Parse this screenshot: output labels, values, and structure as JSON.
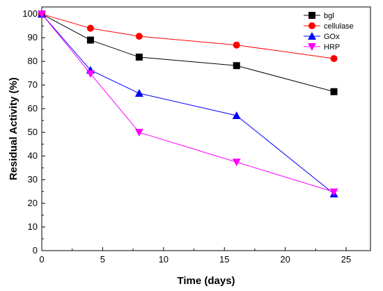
{
  "chart_data": {
    "type": "line",
    "xlabel": "Time (days)",
    "ylabel": "Residual Activity (%)",
    "xlim": [
      0,
      27
    ],
    "ylim": [
      0,
      103
    ],
    "xticks": [
      0,
      5,
      10,
      15,
      20,
      25
    ],
    "yticks": [
      0,
      10,
      20,
      30,
      40,
      50,
      60,
      70,
      80,
      90,
      100
    ],
    "grid": false,
    "legend_position": "top-right",
    "x": [
      0,
      4,
      8,
      16,
      24
    ],
    "series": [
      {
        "name": "bgl",
        "values": [
          100,
          89,
          81.8,
          78.2,
          67.2
        ],
        "color": "#000000",
        "marker": "square"
      },
      {
        "name": "cellulase",
        "values": [
          100,
          94,
          90.6,
          86.9,
          81.2
        ],
        "color": "#ff0000",
        "marker": "circle"
      },
      {
        "name": "GOx",
        "values": [
          100,
          76.3,
          66.5,
          57.1,
          24
        ],
        "color": "#0000ff",
        "marker": "triangle-up"
      },
      {
        "name": "HRP",
        "values": [
          100,
          74.8,
          50,
          37.4,
          24.8
        ],
        "color": "#ff00ff",
        "marker": "triangle-down"
      }
    ]
  }
}
